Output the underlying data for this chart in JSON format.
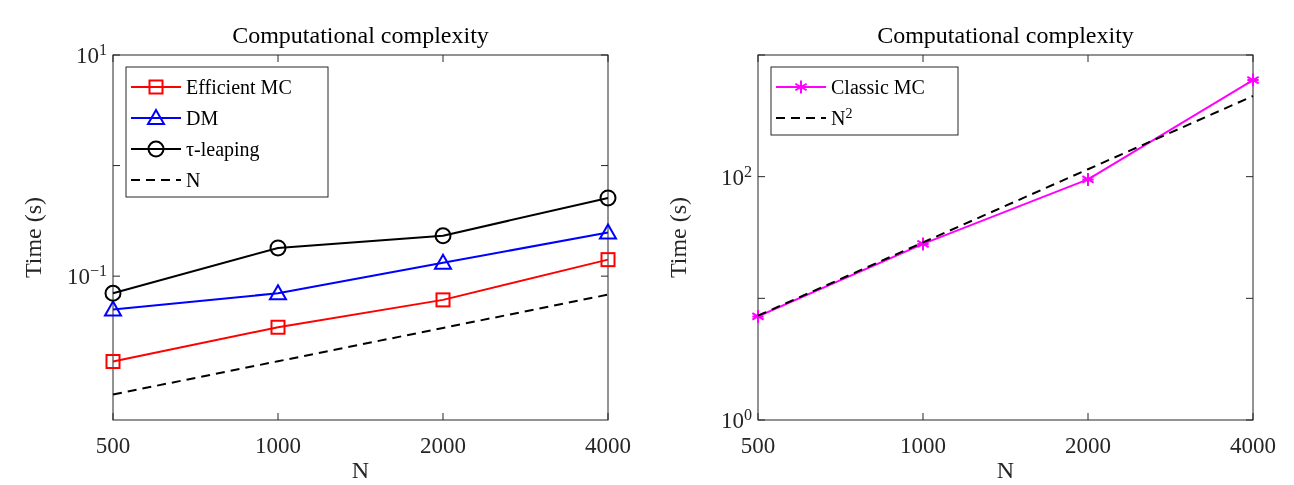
{
  "chart_data": [
    {
      "type": "line",
      "title": "Computational complexity",
      "xlabel": "N",
      "ylabel": "Time (s)",
      "log": "xy",
      "xlim": [
        500,
        4000
      ],
      "xticks": [
        500,
        1000,
        2000,
        4000
      ],
      "ylim": [
        0.005,
        10
      ],
      "yticks": [
        {
          "value": 0.1,
          "label": "10$^{−1}$"
        },
        {
          "value": 1,
          "label": null
        },
        {
          "value": 10,
          "label": "10$^{1}$"
        }
      ],
      "legend": "top left",
      "x": [
        500,
        1000,
        2000,
        4000
      ],
      "series": [
        {
          "name": "Efficient MC",
          "color": "#ff0000",
          "marker": "square",
          "values": [
            0.0169,
            0.0345,
            0.061,
            0.141
          ]
        },
        {
          "name": "DM",
          "color": "#0000ff",
          "marker": "triangle",
          "values": [
            0.05,
            0.07,
            0.132,
            0.248
          ]
        },
        {
          "name": "τ-leaping",
          "color": "#000000",
          "marker": "circle",
          "values": [
            0.07,
            0.18,
            0.232,
            0.51
          ]
        },
        {
          "name": "N",
          "color": "#000000",
          "marker": "none",
          "line_style": "dashed",
          "values": [
            0.0085,
            0.017,
            0.034,
            0.068
          ]
        }
      ]
    },
    {
      "type": "line",
      "title": "Computational complexity",
      "xlabel": "N",
      "ylabel": "Time (s)",
      "log": "xy",
      "xlim": [
        500,
        4000
      ],
      "xticks": [
        500,
        1000,
        2000,
        4000
      ],
      "ylim": [
        1,
        1000
      ],
      "yticks": [
        {
          "value": 1,
          "label": "10$^{0}$"
        },
        {
          "value": 10,
          "label": null
        },
        {
          "value": 100,
          "label": "10$^{2}$"
        },
        {
          "value": 1000,
          "label": null
        }
      ],
      "legend": "top left",
      "x": [
        500,
        1000,
        2000,
        4000
      ],
      "series": [
        {
          "name": "Classic MC",
          "color": "#ff00ff",
          "marker": "cross",
          "values": [
            7.1,
            28,
            95,
            622
          ]
        },
        {
          "name": "N$^{2}$",
          "color": "#000000",
          "marker": "none",
          "line_style": "dashed",
          "values": [
            7.2,
            28.8,
            115,
            460
          ]
        }
      ]
    }
  ]
}
